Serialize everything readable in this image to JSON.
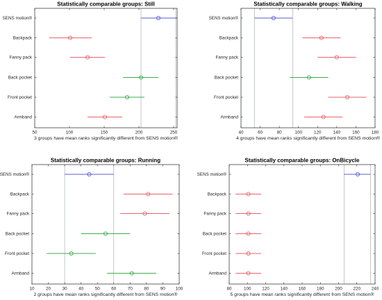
{
  "colors": {
    "red": "#e8636b",
    "green": "#3cae4c",
    "blue": "#5b5bd6",
    "ref": "#9aa5a5",
    "axis": "#262626"
  },
  "chart_data": [
    {
      "type": "interval",
      "title": "Statistically comparable groups: Still",
      "xlabel": "3 groups have mean ranks significantly different from SENS motion®",
      "categories": [
        "SENS motion®",
        "Backpack",
        "Fanny pack",
        "Back pocket",
        "Front pocket",
        "Armband"
      ],
      "xlim": [
        50,
        255
      ],
      "xticks": [
        50,
        100,
        150,
        200,
        250
      ],
      "reference_lines": [
        203,
        253
      ],
      "series": [
        {
          "mean": 228,
          "low": 203,
          "high": 255,
          "color": "blue"
        },
        {
          "mean": 101,
          "low": 71,
          "high": 132,
          "color": "red"
        },
        {
          "mean": 126,
          "low": 101,
          "high": 151,
          "color": "red"
        },
        {
          "mean": 203,
          "low": 177,
          "high": 228,
          "color": "green"
        },
        {
          "mean": 183,
          "low": 158,
          "high": 208,
          "color": "green"
        },
        {
          "mean": 151,
          "low": 126,
          "high": 176,
          "color": "red"
        }
      ]
    },
    {
      "type": "interval",
      "title": "Statistically comparable groups: Walking",
      "xlabel": "4 groups have mean ranks significantly different from SENS motion®",
      "categories": [
        "SENS motion®",
        "Backpack",
        "Fanny pack",
        "Back pocket",
        "Front pocket",
        "Armband"
      ],
      "xlim": [
        40,
        180
      ],
      "xticks": [
        40,
        60,
        80,
        100,
        120,
        140,
        160,
        180
      ],
      "reference_lines": [
        54,
        94
      ],
      "series": [
        {
          "mean": 74,
          "low": 54,
          "high": 94,
          "color": "blue"
        },
        {
          "mean": 124,
          "low": 104,
          "high": 144,
          "color": "red"
        },
        {
          "mean": 140,
          "low": 120,
          "high": 160,
          "color": "red"
        },
        {
          "mean": 111,
          "low": 91,
          "high": 131,
          "color": "green"
        },
        {
          "mean": 151,
          "low": 131,
          "high": 171,
          "color": "red"
        },
        {
          "mean": 126,
          "low": 106,
          "high": 146,
          "color": "red"
        }
      ]
    },
    {
      "type": "interval",
      "title": "Statistically comparable groups: Running",
      "xlabel": "2 groups have mean ranks significantly different from SENS motion®",
      "categories": [
        "SENS motion®",
        "Backpack",
        "Fanny pack",
        "Back pocket",
        "Front pocket",
        "Armband"
      ],
      "xlim": [
        10,
        100
      ],
      "xticks": [
        10,
        20,
        30,
        40,
        50,
        60,
        70,
        80,
        90,
        100
      ],
      "reference_lines": [
        30,
        60
      ],
      "series": [
        {
          "mean": 45,
          "low": 30,
          "high": 60,
          "color": "blue"
        },
        {
          "mean": 81,
          "low": 66,
          "high": 96,
          "color": "red"
        },
        {
          "mean": 79,
          "low": 64,
          "high": 94,
          "color": "red"
        },
        {
          "mean": 55,
          "low": 40,
          "high": 70,
          "color": "green"
        },
        {
          "mean": 34,
          "low": 19,
          "high": 49,
          "color": "green"
        },
        {
          "mean": 71,
          "low": 56,
          "high": 86,
          "color": "green"
        }
      ]
    },
    {
      "type": "interval",
      "title": "Statistically comparable groups: OnBicycle",
      "xlabel": "5 groups have mean ranks significantly different from SENS motion®",
      "categories": [
        "SENS motion®",
        "Backpack",
        "Fanny pack",
        "Back pocket",
        "Front pocket",
        "Armband"
      ],
      "xlim": [
        80,
        240
      ],
      "xticks": [
        80,
        100,
        120,
        140,
        160,
        180,
        200,
        220,
        240
      ],
      "reference_lines": [
        206,
        235
      ],
      "series": [
        {
          "mean": 221,
          "low": 206,
          "high": 235,
          "color": "blue"
        },
        {
          "mean": 101,
          "low": 87,
          "high": 115,
          "color": "red"
        },
        {
          "mean": 101,
          "low": 87,
          "high": 115,
          "color": "red"
        },
        {
          "mean": 101,
          "low": 87,
          "high": 115,
          "color": "red"
        },
        {
          "mean": 101,
          "low": 87,
          "high": 115,
          "color": "red"
        },
        {
          "mean": 101,
          "low": 87,
          "high": 115,
          "color": "red"
        }
      ]
    }
  ]
}
